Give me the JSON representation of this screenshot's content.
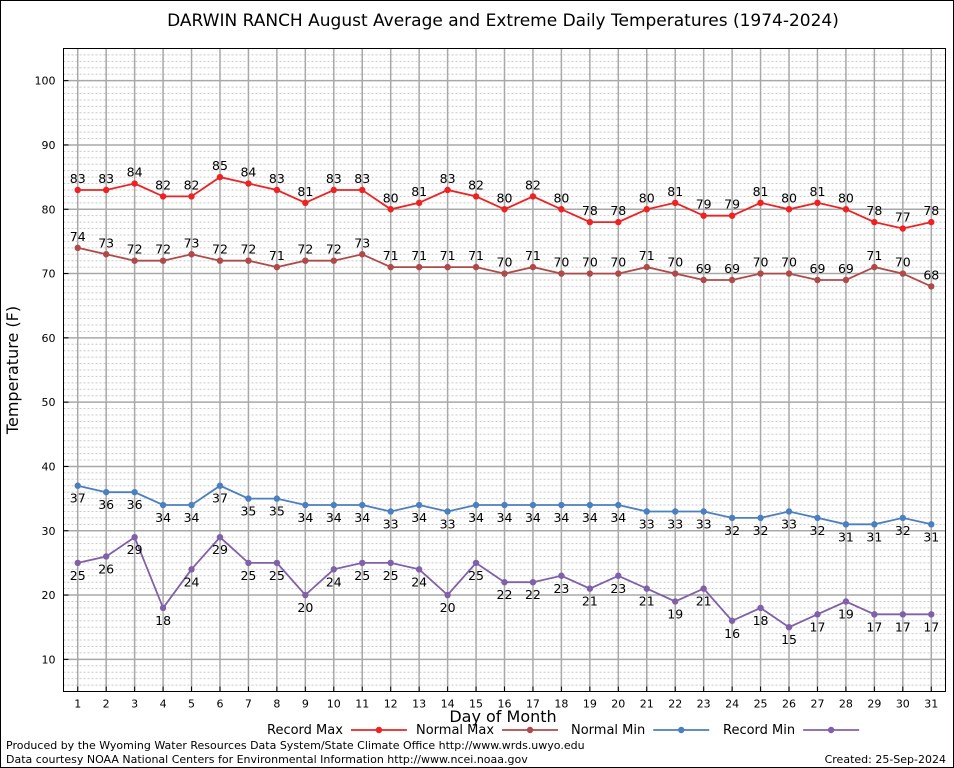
{
  "chart_data": {
    "type": "line",
    "title": "DARWIN RANCH August Average and Extreme Daily Temperatures (1974-2024)",
    "xlabel": "Day of Month",
    "ylabel": "Temperature (F)",
    "xlim": [
      0.5,
      31.5
    ],
    "ylim": [
      5,
      105
    ],
    "yticks": [
      10,
      20,
      30,
      40,
      50,
      60,
      70,
      80,
      90,
      100
    ],
    "x": [
      1,
      2,
      3,
      4,
      5,
      6,
      7,
      8,
      9,
      10,
      11,
      12,
      13,
      14,
      15,
      16,
      17,
      18,
      19,
      20,
      21,
      22,
      23,
      24,
      25,
      26,
      27,
      28,
      29,
      30,
      31
    ],
    "grid": true,
    "legend_position": "bottom",
    "series": [
      {
        "name": "Record Max",
        "color": "#ee2222",
        "label_position": "above",
        "values": [
          83,
          83,
          84,
          82,
          82,
          85,
          84,
          83,
          81,
          83,
          83,
          80,
          81,
          83,
          82,
          80,
          82,
          80,
          78,
          78,
          80,
          81,
          79,
          79,
          81,
          80,
          81,
          80,
          78,
          77,
          78
        ]
      },
      {
        "name": "Normal Max",
        "color": "#b04a4a",
        "label_position": "above",
        "values": [
          74,
          73,
          72,
          72,
          73,
          72,
          72,
          71,
          72,
          72,
          73,
          71,
          71,
          71,
          71,
          70,
          71,
          70,
          70,
          70,
          71,
          70,
          69,
          69,
          70,
          70,
          69,
          69,
          71,
          70,
          68
        ]
      },
      {
        "name": "Normal Min",
        "color": "#4a7fc0",
        "label_position": "below",
        "values": [
          37,
          36,
          36,
          34,
          34,
          37,
          35,
          35,
          34,
          34,
          34,
          33,
          34,
          33,
          34,
          34,
          34,
          34,
          34,
          34,
          33,
          33,
          33,
          32,
          32,
          33,
          32,
          31,
          31,
          32,
          31
        ]
      },
      {
        "name": "Record Min",
        "color": "#8060a8",
        "label_position": "below",
        "values": [
          25,
          26,
          29,
          18,
          24,
          29,
          25,
          25,
          20,
          24,
          25,
          25,
          24,
          20,
          25,
          22,
          22,
          23,
          21,
          23,
          21,
          19,
          21,
          16,
          18,
          15,
          17,
          19,
          17,
          17,
          17
        ]
      }
    ]
  },
  "footer": {
    "produced_by": "Produced by the Wyoming Water Resources Data System/State Climate Office http://www.wrds.uwyo.edu",
    "data_courtesy": "Data courtesy NOAA National Centers for Environmental Information http://www.ncei.noaa.gov",
    "created": "Created:  25-Sep-2024"
  }
}
